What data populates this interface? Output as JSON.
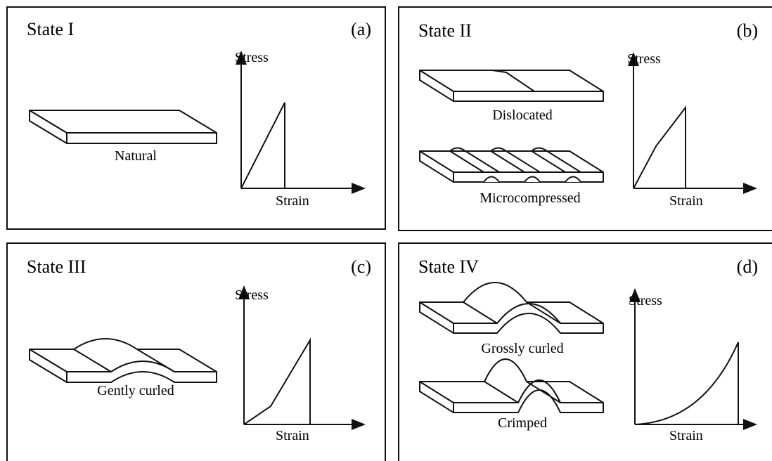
{
  "panels": [
    {
      "title": "State I",
      "letter": "(a)",
      "samples": [
        "Natural"
      ],
      "y_axis": "Stress",
      "x_axis": "Strain"
    },
    {
      "title": "State II",
      "letter": "(b)",
      "samples": [
        "Dislocated",
        "Microcompressed"
      ],
      "y_axis": "Stress",
      "x_axis": "Strain"
    },
    {
      "title": "State III",
      "letter": "(c)",
      "samples": [
        "Gently curled"
      ],
      "y_axis": "Stress",
      "x_axis": "Strain"
    },
    {
      "title": "State IV",
      "letter": "(d)",
      "samples": [
        "Grossly curled",
        "Crimped"
      ],
      "y_axis": "Stress",
      "x_axis": "Strain"
    }
  ]
}
